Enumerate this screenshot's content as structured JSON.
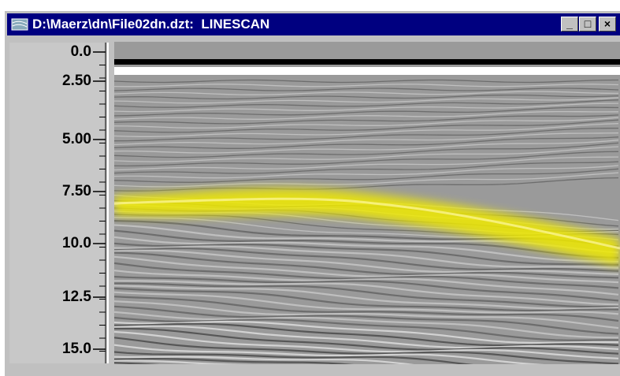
{
  "window": {
    "title": "D:\\Maerz\\dn\\File02dn.dzt:  LINESCAN"
  },
  "depth_scale": {
    "labels": [
      "0.0",
      "2.50",
      "5.00",
      "7.50",
      "10.0",
      "12.5",
      "15.0"
    ]
  }
}
